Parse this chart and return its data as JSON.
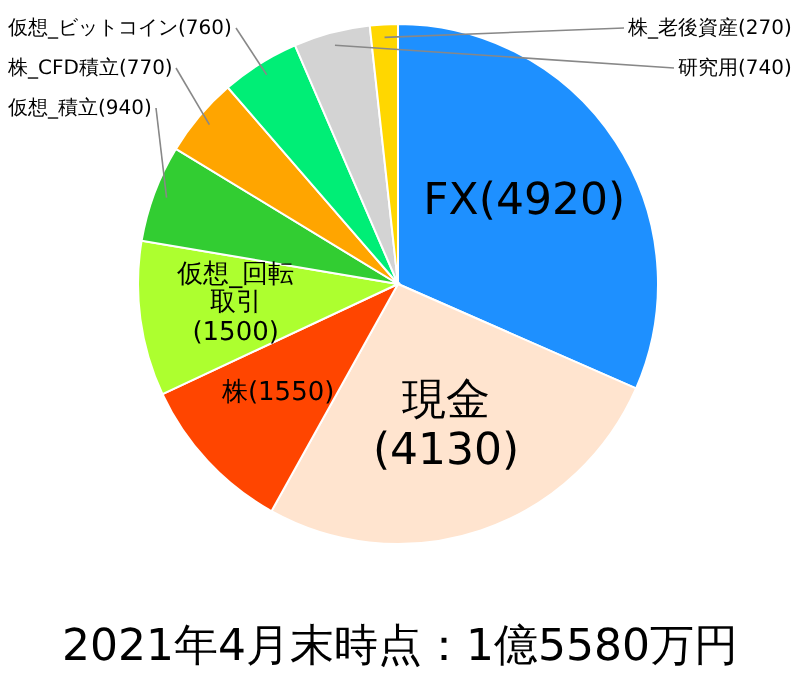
{
  "chart_data": {
    "type": "pie",
    "title": "2021年4月末時点：1億5580万円",
    "categories": [
      "FX",
      "現金",
      "株",
      "仮想_回転取引",
      "仮想_積立",
      "株_CFD積立",
      "仮想_ビットコイン",
      "研究用",
      "株_老後資産"
    ],
    "values": [
      4920,
      4130,
      1550,
      1500,
      940,
      770,
      760,
      740,
      270
    ],
    "colors": [
      "#1e90ff",
      "#ffe4cf",
      "#ff4500",
      "#adff2f",
      "#32cd32",
      "#ffa500",
      "#00ee76",
      "#d3d3d3",
      "#ffd700"
    ],
    "value_labels": [
      "(4920)",
      "(4130)",
      "(1550)",
      "(1500)",
      "(940)",
      "(770)",
      "(760)",
      "(740)",
      "(270)"
    ]
  }
}
